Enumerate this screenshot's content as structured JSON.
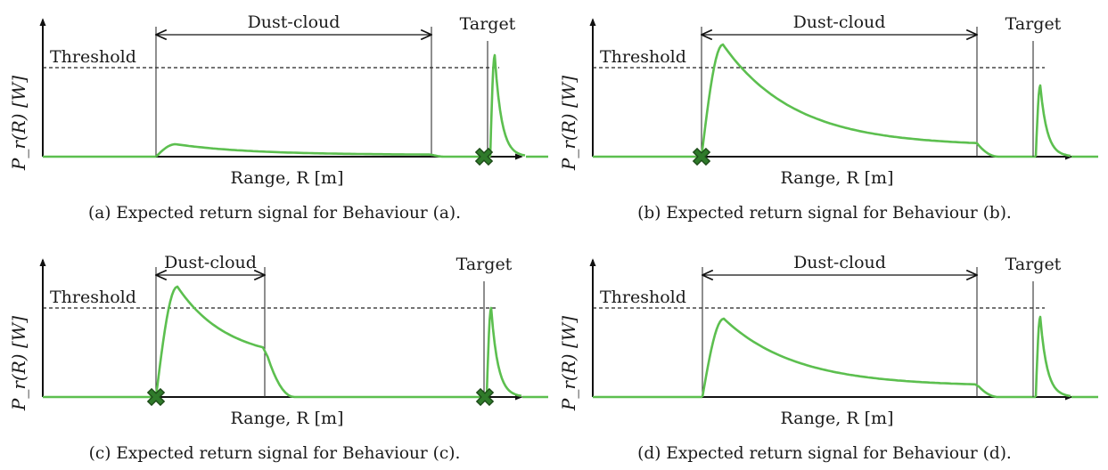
{
  "colors": {
    "signal": "#5cbf4f",
    "marker_fill": "#2f7a2a",
    "marker_stroke": "#1c4a18",
    "axis": "#111111"
  },
  "panels": [
    {
      "id": "a",
      "caption": "(a) Expected return signal for Behaviour (a).",
      "y_axis_label": "P_r(R) [W]",
      "x_axis_label": "Range, R [m]",
      "threshold_label": "Threshold",
      "dust_label": "Dust-cloud",
      "target_label": "Target",
      "markers": [
        "target"
      ]
    },
    {
      "id": "b",
      "caption": "(b) Expected return signal for Behaviour (b).",
      "y_axis_label": "P_r(R) [W]",
      "x_axis_label": "Range, R [m]",
      "threshold_label": "Threshold",
      "dust_label": "Dust-cloud",
      "target_label": "Target",
      "markers": [
        "dust"
      ]
    },
    {
      "id": "c",
      "caption": "(c) Expected return signal for Behaviour (c).",
      "y_axis_label": "P_r(R) [W]",
      "x_axis_label": "Range, R [m]",
      "threshold_label": "Threshold",
      "dust_label": "Dust-cloud",
      "target_label": "Target",
      "markers": [
        "dust",
        "target"
      ]
    },
    {
      "id": "d",
      "caption": "(d) Expected return signal for Behaviour (d).",
      "y_axis_label": "P_r(R) [W]",
      "x_axis_label": "Range, R [m]",
      "threshold_label": "Threshold",
      "dust_label": "Dust-cloud",
      "target_label": "Target",
      "markers": []
    }
  ]
}
